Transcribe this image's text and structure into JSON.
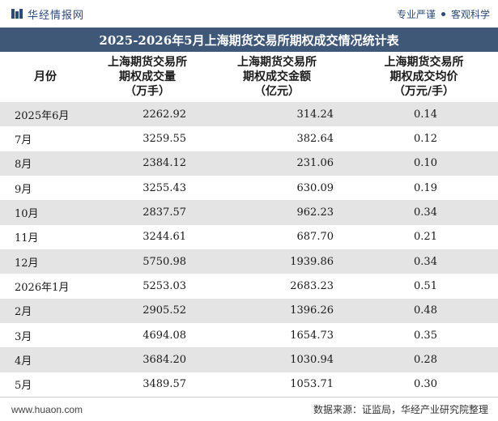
{
  "header": {
    "brand": "华经情报网",
    "tagline_left": "专业严谨",
    "tagline_right": "客观科学"
  },
  "title": "2025-2026年5月上海期货交易所期权成交情况统计表",
  "columns": [
    {
      "line1": "月份",
      "line2": "",
      "line3": ""
    },
    {
      "line1": "上海期货交易所",
      "line2": "期权成交量",
      "line3": "（万手）"
    },
    {
      "line1": "上海期货交易所",
      "line2": "期权成交金额",
      "line3": "（亿元）"
    },
    {
      "line1": "上海期货交易所",
      "line2": "期权成交均价",
      "line3": "（万元/手）"
    }
  ],
  "rows": [
    {
      "month": "2025年6月",
      "volume": "2262.92",
      "amount": "314.24",
      "avg": "0.14"
    },
    {
      "month": "7月",
      "volume": "3259.55",
      "amount": "382.64",
      "avg": "0.12"
    },
    {
      "month": "8月",
      "volume": "2384.12",
      "amount": "231.06",
      "avg": "0.10"
    },
    {
      "month": "9月",
      "volume": "3255.43",
      "amount": "630.09",
      "avg": "0.19"
    },
    {
      "month": "10月",
      "volume": "2837.57",
      "amount": "962.23",
      "avg": "0.34"
    },
    {
      "month": "11月",
      "volume": "3244.61",
      "amount": "687.70",
      "avg": "0.21"
    },
    {
      "month": "12月",
      "volume": "5750.98",
      "amount": "1939.86",
      "avg": "0.34"
    },
    {
      "month": "2026年1月",
      "volume": "5253.03",
      "amount": "2683.23",
      "avg": "0.51"
    },
    {
      "month": "2月",
      "volume": "2905.52",
      "amount": "1396.26",
      "avg": "0.48"
    },
    {
      "month": "3月",
      "volume": "4694.08",
      "amount": "1654.73",
      "avg": "0.35"
    },
    {
      "month": "4月",
      "volume": "3684.20",
      "amount": "1030.94",
      "avg": "0.28"
    },
    {
      "month": "5月",
      "volume": "3489.57",
      "amount": "1053.71",
      "avg": "0.30"
    }
  ],
  "footer": {
    "url": "www.huaon.com",
    "source": "数据来源：证监局，华经产业研究院整理"
  },
  "colors": {
    "title_bg": "#3f5877",
    "row_shade": "#e4e4e4",
    "brand": "#2c4a7a"
  }
}
